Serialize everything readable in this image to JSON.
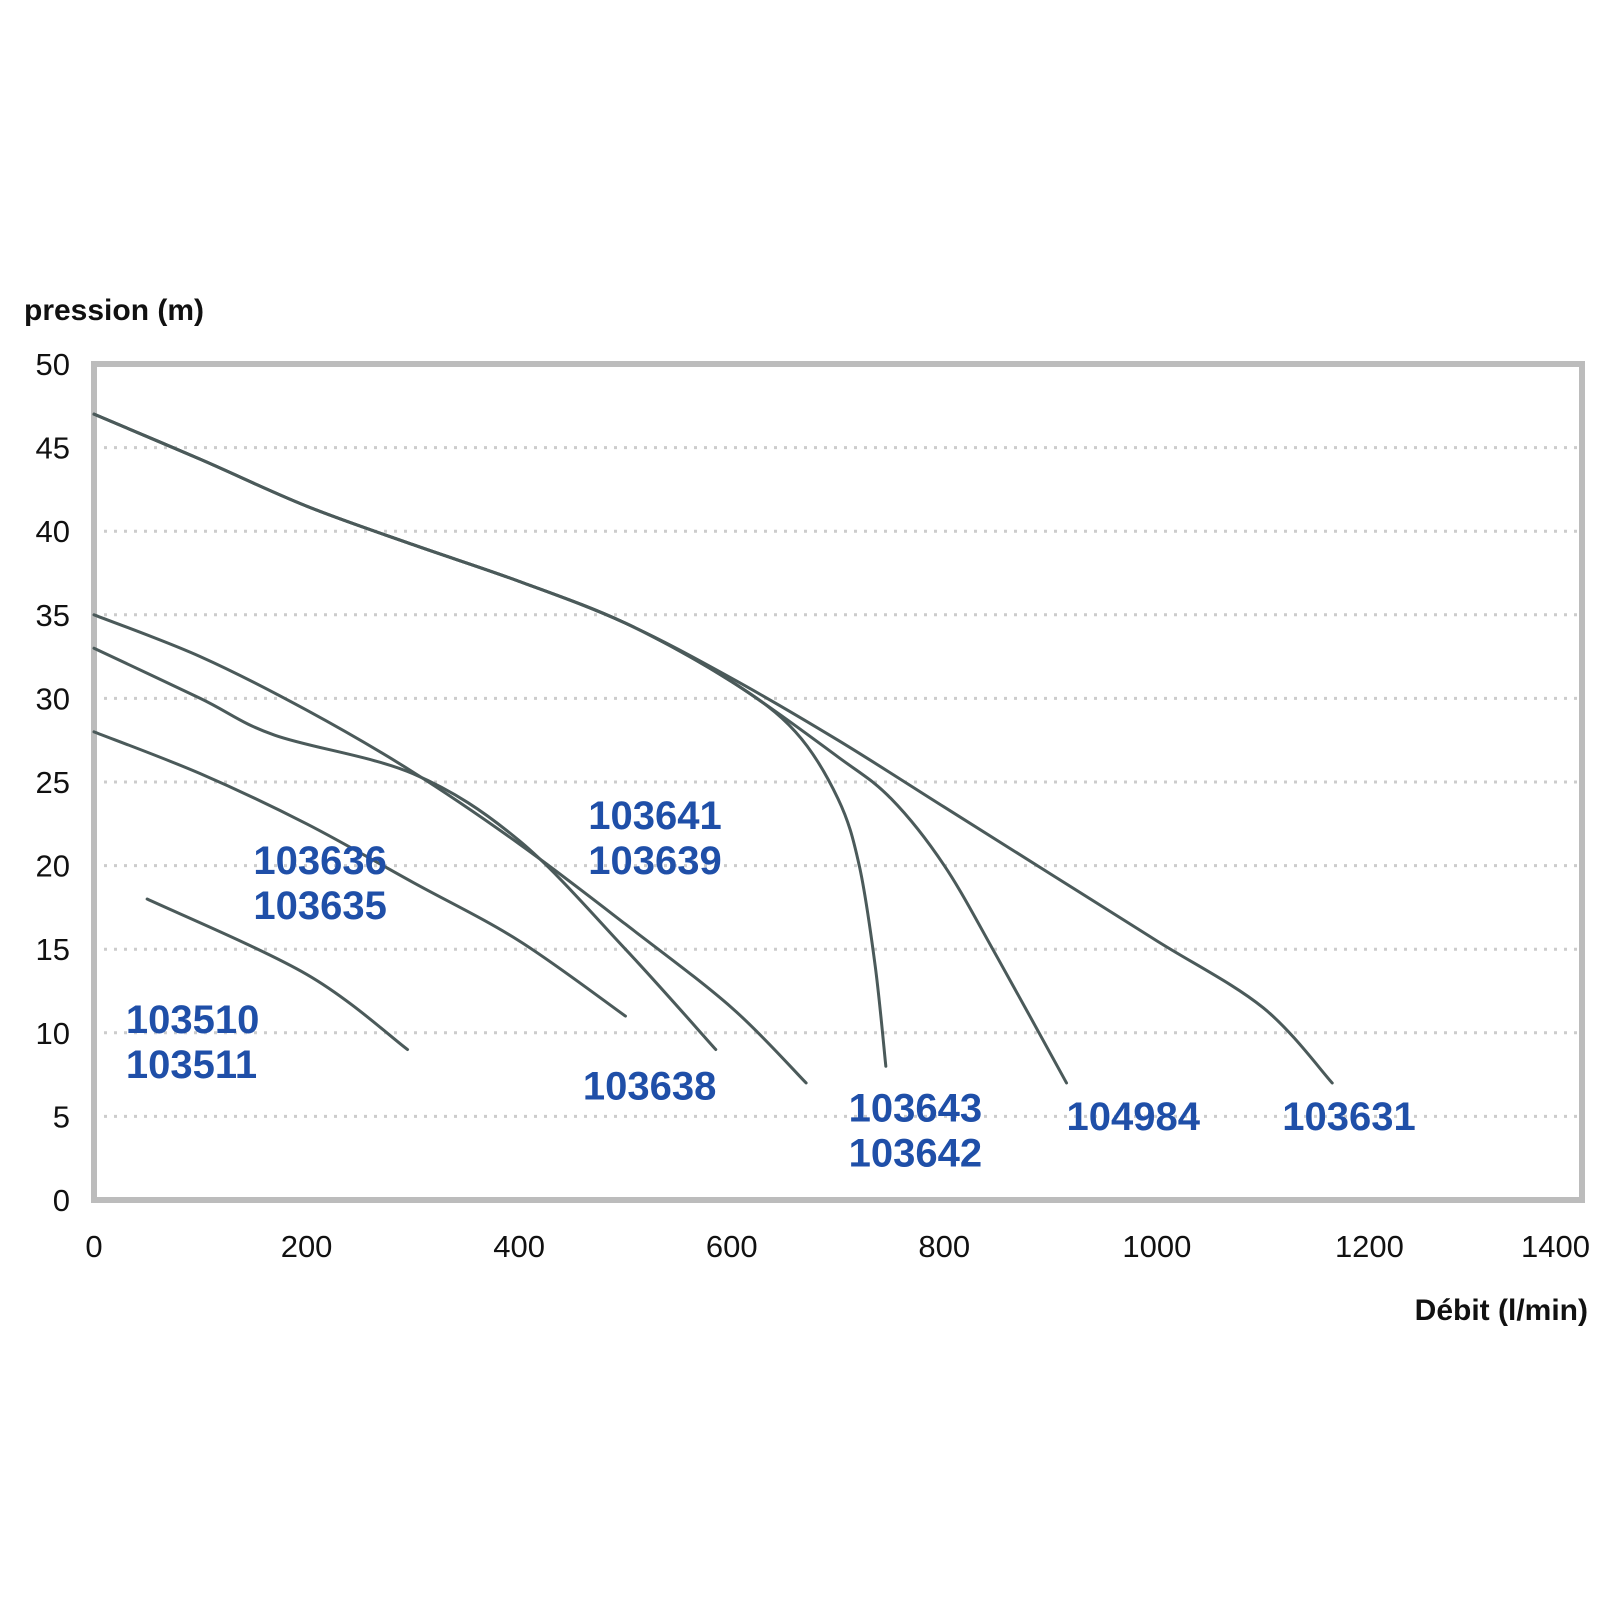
{
  "chart_data": {
    "type": "line",
    "ylabel": "pression (m)",
    "xlabel": "Débit (l/min)",
    "xlim": [
      0,
      1400
    ],
    "ylim": [
      0,
      50
    ],
    "x_ticks": [
      0,
      200,
      400,
      600,
      800,
      1000,
      1200,
      1400
    ],
    "y_ticks": [
      0,
      5,
      10,
      15,
      20,
      25,
      30,
      35,
      40,
      45,
      50
    ],
    "grid": true,
    "colors": {
      "line": "#4b5a5a",
      "label": "#1f4fa8",
      "grid": "#cccccc",
      "frame": "#bcbcbc"
    },
    "series": [
      {
        "points": [
          [
            50,
            18
          ],
          [
            200,
            13.5
          ],
          [
            295,
            9
          ]
        ]
      },
      {
        "points": [
          [
            0,
            28
          ],
          [
            100,
            25.5
          ],
          [
            200,
            22.5
          ],
          [
            300,
            19
          ],
          [
            400,
            15.5
          ],
          [
            500,
            11
          ]
        ]
      },
      {
        "points": [
          [
            0,
            33
          ],
          [
            100,
            30
          ],
          [
            170,
            27.8
          ],
          [
            300,
            25.5
          ],
          [
            400,
            21.5
          ],
          [
            500,
            15
          ],
          [
            585,
            9
          ]
        ]
      },
      {
        "points": [
          [
            0,
            35
          ],
          [
            100,
            32.5
          ],
          [
            200,
            29.3
          ],
          [
            300,
            25.6
          ],
          [
            400,
            21.3
          ],
          [
            500,
            16.5
          ],
          [
            600,
            11.5
          ],
          [
            670,
            7
          ]
        ]
      },
      {
        "points": [
          [
            0,
            47
          ],
          [
            100,
            44.3
          ],
          [
            200,
            41.5
          ],
          [
            300,
            39.2
          ],
          [
            400,
            37
          ],
          [
            500,
            34.5
          ],
          [
            600,
            31
          ],
          [
            660,
            28
          ],
          [
            700,
            24
          ],
          [
            720,
            20
          ],
          [
            735,
            14
          ],
          [
            745,
            8
          ]
        ]
      },
      {
        "points": [
          [
            0,
            47
          ],
          [
            100,
            44.3
          ],
          [
            200,
            41.5
          ],
          [
            300,
            39.2
          ],
          [
            400,
            37
          ],
          [
            500,
            34.5
          ],
          [
            600,
            31
          ],
          [
            700,
            26.5
          ],
          [
            750,
            24
          ],
          [
            800,
            20
          ],
          [
            850,
            14.5
          ],
          [
            915,
            7
          ]
        ]
      },
      {
        "points": [
          [
            0,
            47
          ],
          [
            100,
            44.3
          ],
          [
            200,
            41.5
          ],
          [
            300,
            39.2
          ],
          [
            400,
            37
          ],
          [
            500,
            34.5
          ],
          [
            600,
            31.2
          ],
          [
            700,
            27.5
          ],
          [
            800,
            23.5
          ],
          [
            900,
            19.5
          ],
          [
            1000,
            15.5
          ],
          [
            1100,
            11.5
          ],
          [
            1165,
            7
          ]
        ]
      }
    ],
    "labels": [
      {
        "lines": [
          "103510",
          "103511"
        ],
        "x": 30,
        "y": 10
      },
      {
        "lines": [
          "103636",
          "103635"
        ],
        "x": 150,
        "y": 19.5
      },
      {
        "lines": [
          "103638"
        ],
        "x": 460,
        "y": 6
      },
      {
        "lines": [
          "103641",
          "103639"
        ],
        "x": 465,
        "y": 22.2
      },
      {
        "lines": [
          "103643",
          "103642"
        ],
        "x": 710,
        "y": 4.7
      },
      {
        "lines": [
          "104984"
        ],
        "x": 915,
        "y": 4.2
      },
      {
        "lines": [
          "103631"
        ],
        "x": 1118,
        "y": 4.2
      }
    ]
  }
}
